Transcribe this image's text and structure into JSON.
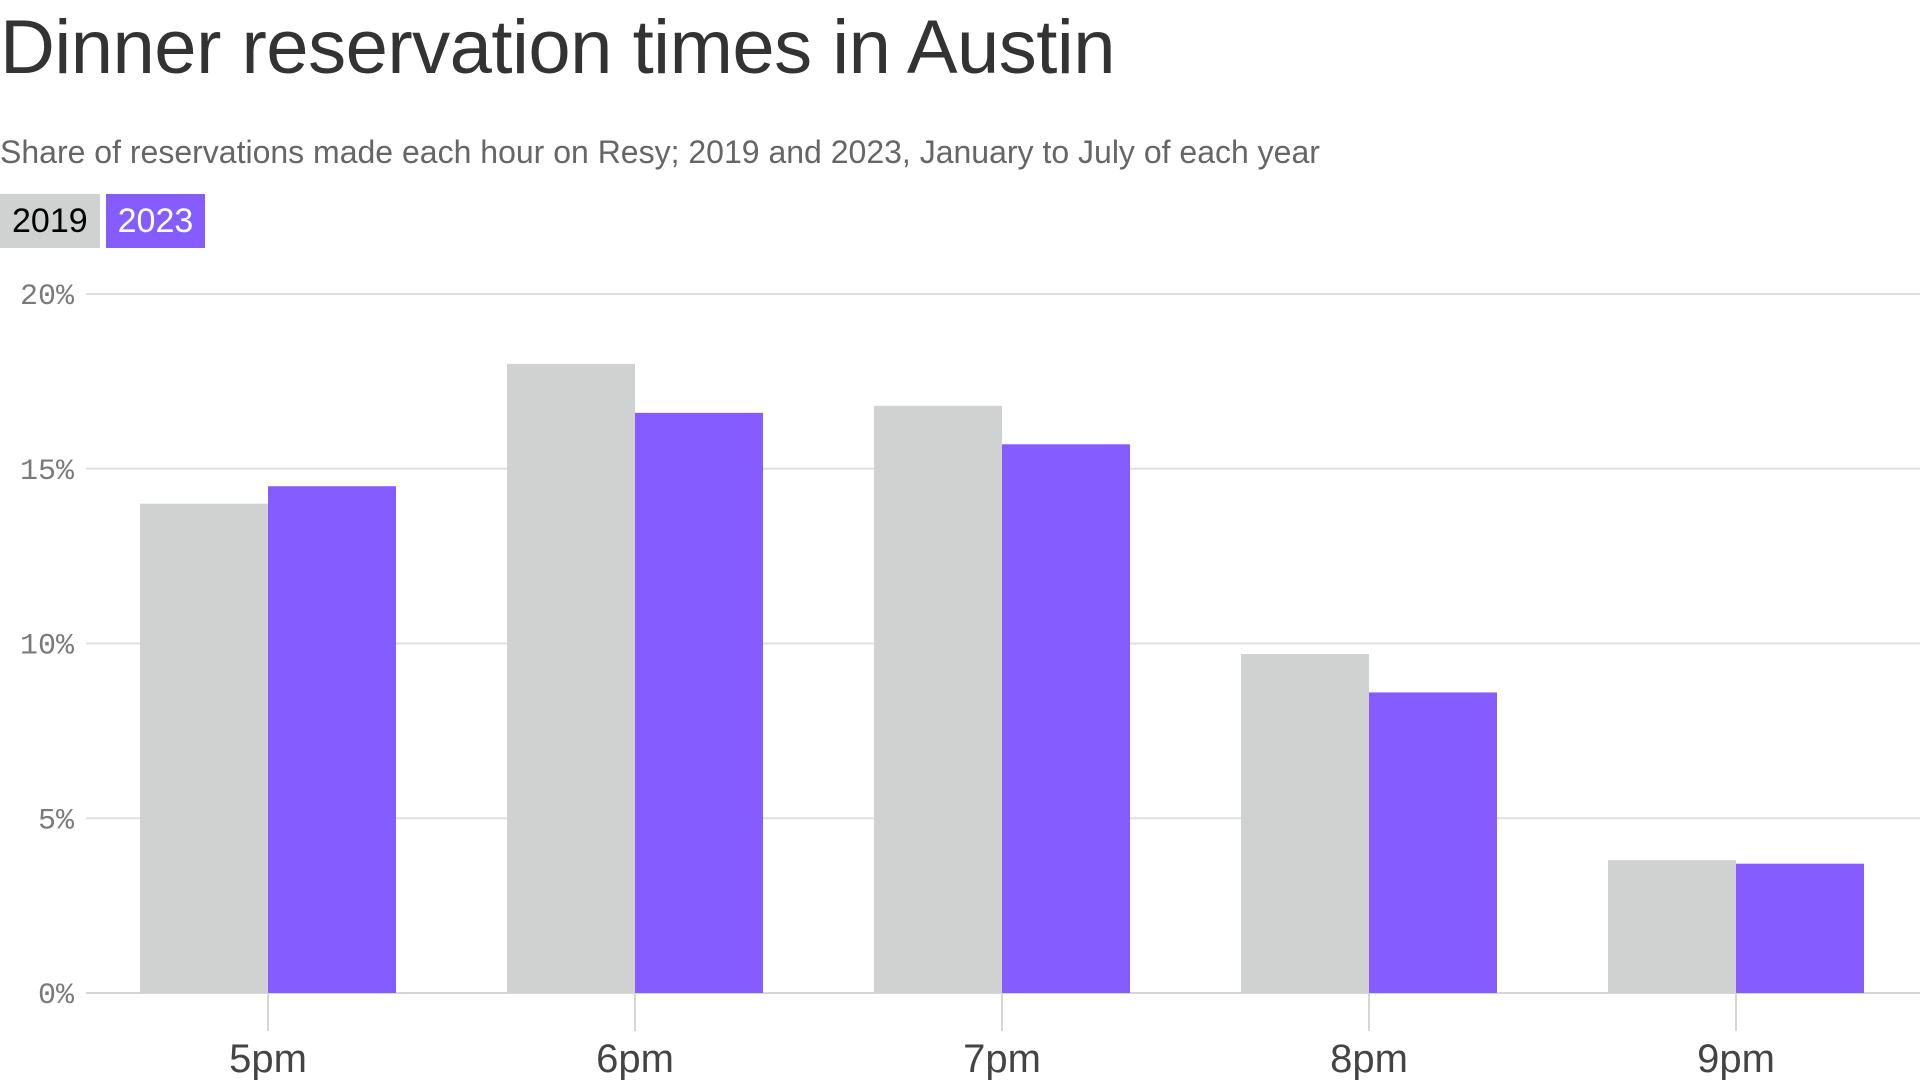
{
  "chart_data": {
    "type": "bar",
    "title": "Dinner reservation times in Austin",
    "subtitle": "Share of reservations made each hour on Resy; 2019 and 2023, January to July of each year",
    "categories": [
      "5pm",
      "6pm",
      "7pm",
      "8pm",
      "9pm"
    ],
    "series": [
      {
        "name": "2019",
        "color": "#d0d1d1",
        "values": [
          14.0,
          18.0,
          16.8,
          9.7,
          3.8
        ]
      },
      {
        "name": "2023",
        "color": "#845cff",
        "values": [
          14.5,
          16.6,
          15.7,
          8.6,
          3.7
        ]
      }
    ],
    "ylim": [
      0,
      20
    ],
    "yticks": [
      0,
      5,
      10,
      15,
      20
    ],
    "ytick_labels": [
      "0%",
      "5%",
      "10%",
      "15%",
      "20%"
    ],
    "xlabel": "",
    "ylabel": "",
    "grid": true,
    "legend": "top-left"
  }
}
